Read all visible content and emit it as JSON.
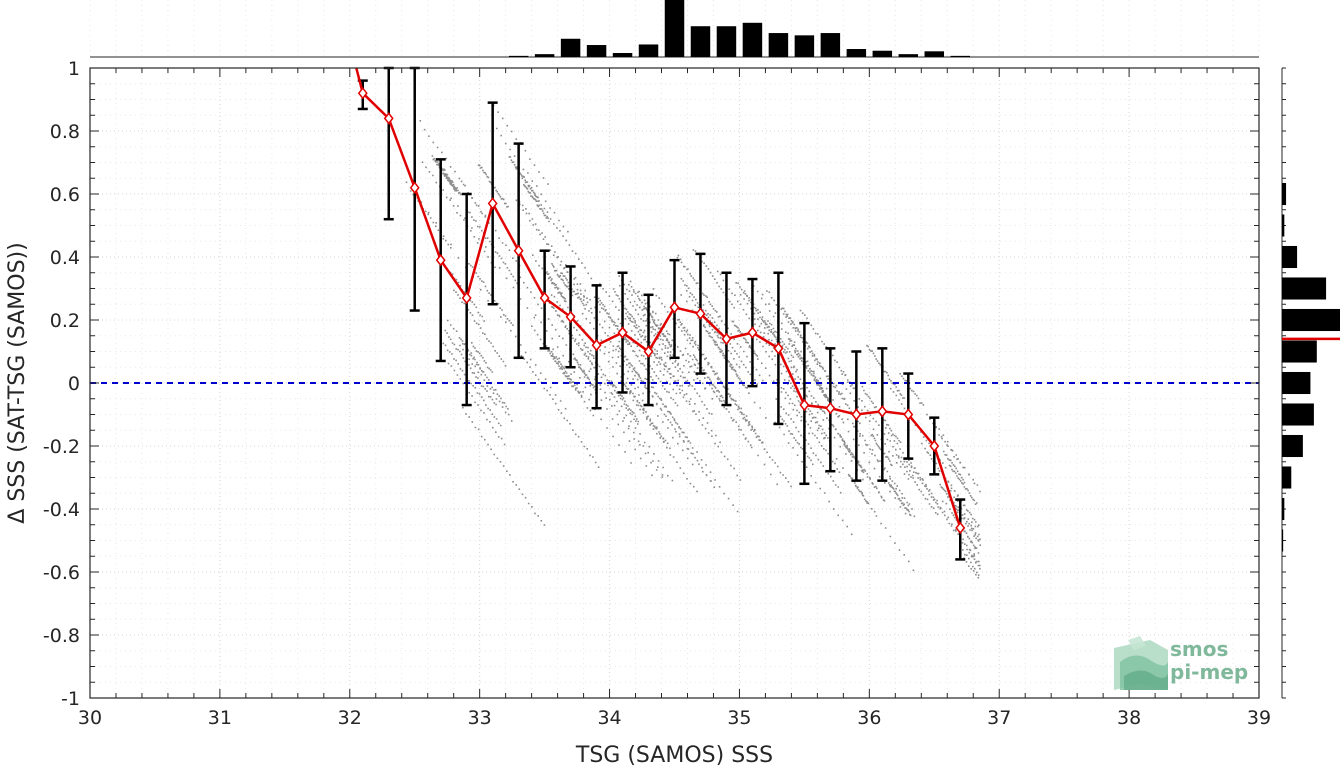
{
  "chart_data": {
    "type": "scatter",
    "xlabel": "TSG (SAMOS) SSS",
    "ylabel": "Δ SSS (SAT-TSG (SAMOS))",
    "xlim": [
      30,
      39
    ],
    "ylim": [
      -1,
      1
    ],
    "x_ticks": [
      "30",
      "31",
      "32",
      "33",
      "34",
      "35",
      "36",
      "37",
      "38",
      "39"
    ],
    "y_ticks": [
      "-1",
      "-0.8",
      "-0.6",
      "-0.4",
      "-0.2",
      "0",
      "0.2",
      "0.4",
      "0.6",
      "0.8",
      "1"
    ],
    "grid": true,
    "reference_line": {
      "y": 0,
      "color": "#0000cc",
      "style": "dashed"
    },
    "scatter_color": "#8c8c8c",
    "binned_mean": {
      "color": "#e00000",
      "x": [
        32.05,
        32.1,
        32.3,
        32.5,
        32.7,
        32.9,
        33.1,
        33.3,
        33.5,
        33.7,
        33.9,
        34.1,
        34.3,
        34.5,
        34.7,
        34.9,
        35.1,
        35.3,
        35.5,
        35.7,
        35.9,
        36.1,
        36.3,
        36.5,
        36.7
      ],
      "y": [
        1.0,
        0.92,
        0.84,
        0.62,
        0.39,
        0.27,
        0.57,
        0.42,
        0.27,
        0.21,
        0.12,
        0.16,
        0.1,
        0.24,
        0.22,
        0.14,
        0.16,
        0.11,
        -0.07,
        -0.08,
        -0.1,
        -0.09,
        -0.1,
        -0.2,
        -0.46
      ]
    },
    "error_bars": {
      "color": "#000000",
      "x": [
        32.1,
        32.3,
        32.5,
        32.7,
        32.9,
        33.1,
        33.3,
        33.5,
        33.7,
        33.9,
        34.1,
        34.3,
        34.5,
        34.7,
        34.9,
        35.1,
        35.3,
        35.5,
        35.7,
        35.9,
        36.1,
        36.3,
        36.5,
        36.7
      ],
      "lower": [
        0.87,
        0.52,
        0.23,
        0.07,
        -0.07,
        0.25,
        0.08,
        0.11,
        0.05,
        -0.08,
        -0.03,
        -0.07,
        0.08,
        0.03,
        -0.07,
        -0.01,
        -0.13,
        -0.32,
        -0.28,
        -0.31,
        -0.31,
        -0.24,
        -0.29,
        -0.56
      ],
      "upper": [
        0.96,
        1.0,
        1.0,
        0.71,
        0.6,
        0.89,
        0.76,
        0.42,
        0.37,
        0.31,
        0.35,
        0.28,
        0.39,
        0.41,
        0.35,
        0.33,
        0.35,
        0.19,
        0.11,
        0.1,
        0.11,
        0.03,
        -0.11,
        -0.37
      ]
    },
    "top_histogram": {
      "x": [
        33.3,
        33.5,
        33.7,
        33.9,
        34.1,
        34.3,
        34.5,
        34.7,
        34.9,
        35.1,
        35.3,
        35.5,
        35.7,
        35.9,
        36.1,
        36.3,
        36.5,
        36.7
      ],
      "counts": [
        0.02,
        0.05,
        0.32,
        0.21,
        0.07,
        0.22,
        1.0,
        0.54,
        0.54,
        0.6,
        0.42,
        0.38,
        0.42,
        0.14,
        0.11,
        0.05,
        0.1,
        0.02
      ]
    },
    "right_histogram": {
      "y": [
        0.6,
        0.5,
        0.4,
        0.3,
        0.2,
        0.1,
        0.0,
        -0.1,
        -0.2,
        -0.3,
        -0.4,
        -0.5
      ],
      "counts": [
        0.07,
        0.04,
        0.26,
        0.76,
        1.0,
        0.6,
        0.49,
        0.55,
        0.36,
        0.16,
        0.04,
        0.02
      ],
      "mean": 0.14,
      "mean_color": "#e00000"
    }
  },
  "logo": {
    "line1": "smos",
    "line2": "pi-mep"
  }
}
